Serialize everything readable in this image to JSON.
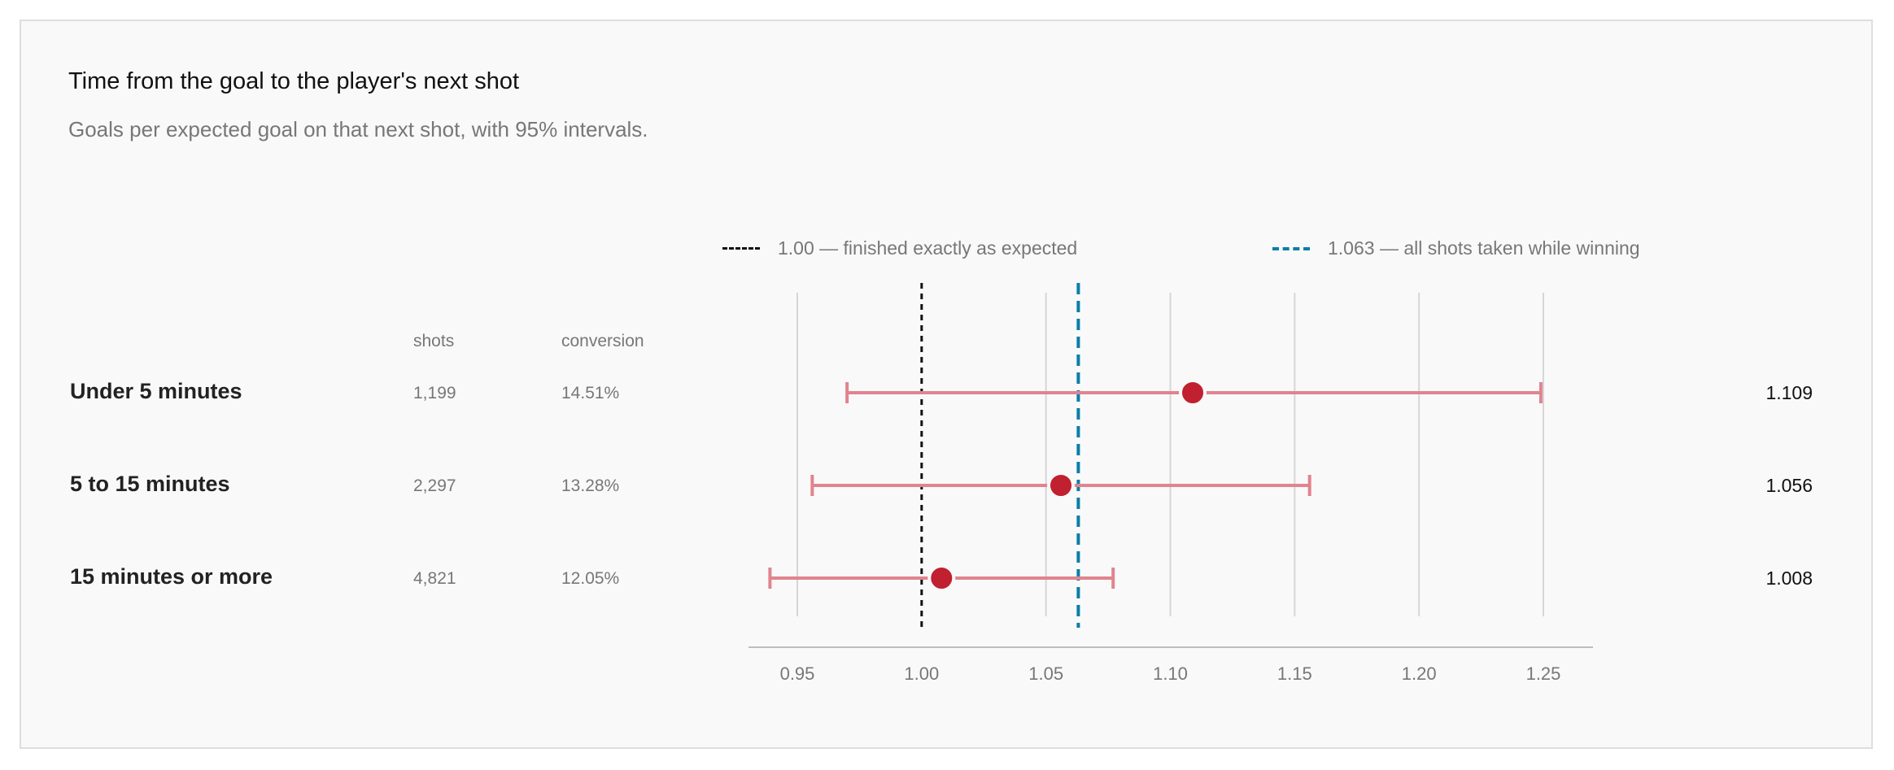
{
  "title": "Time from the goal to the player's next shot",
  "subtitle": "Goals per expected goal on that next shot, with 95% intervals.",
  "legend": [
    {
      "label": "1.00 — finished exactly as expected",
      "color": "#111111",
      "style": "short-dash"
    },
    {
      "label": "1.063 — all shots taken while winning",
      "color": "#0a7ea8",
      "style": "long-dash"
    }
  ],
  "columns": {
    "shots": "shots",
    "conversion": "conversion"
  },
  "rows": [
    {
      "label": "Under 5 minutes",
      "shots": "1,199",
      "conversion": "14.51%",
      "value_label": "1.109"
    },
    {
      "label": "5 to 15 minutes",
      "shots": "2,297",
      "conversion": "13.28%",
      "value_label": "1.056"
    },
    {
      "label": "15 minutes or more",
      "shots": "4,821",
      "conversion": "12.05%",
      "value_label": "1.008"
    }
  ],
  "chart_data": {
    "type": "scatter",
    "title": "Time from the goal to the player's next shot",
    "subtitle": "Goals per expected goal on that next shot, with 95% intervals.",
    "categories": [
      "Under 5 minutes",
      "5 to 15 minutes",
      "15 minutes or more"
    ],
    "values": [
      1.109,
      1.056,
      1.008
    ],
    "ci_low": [
      0.97,
      0.956,
      0.939
    ],
    "ci_high": [
      1.249,
      1.156,
      1.077
    ],
    "xlim": [
      0.93,
      1.27
    ],
    "xticks": [
      0.95,
      1.0,
      1.05,
      1.1,
      1.15,
      1.2,
      1.25
    ],
    "xtick_labels": [
      "0.95",
      "1.00",
      "1.05",
      "1.10",
      "1.15",
      "1.20",
      "1.25"
    ],
    "reference_lines": [
      {
        "value": 1.0,
        "label": "1.00 — finished exactly as expected",
        "color": "#111111"
      },
      {
        "value": 1.063,
        "label": "1.063 — all shots taken while winning",
        "color": "#0a7ea8"
      }
    ],
    "grid": true,
    "legend_position": "top",
    "point_color": "#c0202f",
    "interval_color": "#e0848e"
  }
}
